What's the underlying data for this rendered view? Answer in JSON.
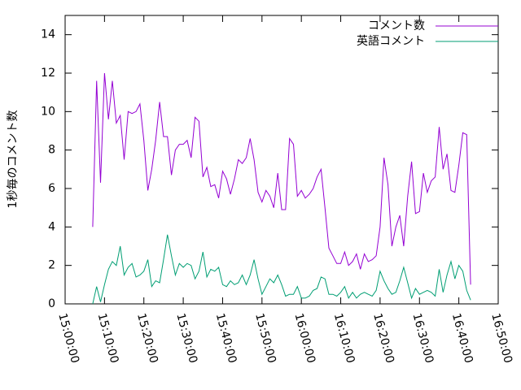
{
  "chart_data": {
    "type": "line",
    "ylabel": "1秒毎のコメント数",
    "x": [
      "15:07:00",
      "15:08:00",
      "15:09:00",
      "15:10:00",
      "15:11:00",
      "15:12:00",
      "15:13:00",
      "15:14:00",
      "15:15:00",
      "15:16:00",
      "15:17:00",
      "15:18:00",
      "15:19:00",
      "15:20:00",
      "15:21:00",
      "15:22:00",
      "15:23:00",
      "15:24:00",
      "15:25:00",
      "15:26:00",
      "15:27:00",
      "15:28:00",
      "15:29:00",
      "15:30:00",
      "15:31:00",
      "15:32:00",
      "15:33:00",
      "15:34:00",
      "15:35:00",
      "15:36:00",
      "15:37:00",
      "15:38:00",
      "15:39:00",
      "15:40:00",
      "15:41:00",
      "15:42:00",
      "15:43:00",
      "15:44:00",
      "15:45:00",
      "15:46:00",
      "15:47:00",
      "15:48:00",
      "15:49:00",
      "15:50:00",
      "15:51:00",
      "15:52:00",
      "15:53:00",
      "15:54:00",
      "15:55:00",
      "15:56:00",
      "15:57:00",
      "15:58:00",
      "15:59:00",
      "16:00:00",
      "16:01:00",
      "16:02:00",
      "16:03:00",
      "16:04:00",
      "16:05:00",
      "16:06:00",
      "16:07:00",
      "16:08:00",
      "16:09:00",
      "16:10:00",
      "16:11:00",
      "16:12:00",
      "16:13:00",
      "16:14:00",
      "16:15:00",
      "16:16:00",
      "16:17:00",
      "16:18:00",
      "16:19:00",
      "16:20:00",
      "16:21:00",
      "16:22:00",
      "16:23:00",
      "16:24:00",
      "16:25:00",
      "16:26:00",
      "16:27:00",
      "16:28:00",
      "16:29:00",
      "16:30:00",
      "16:31:00",
      "16:32:00",
      "16:33:00",
      "16:34:00",
      "16:35:00",
      "16:36:00",
      "16:37:00",
      "16:38:00",
      "16:39:00",
      "16:40:00",
      "16:41:00",
      "16:42:00",
      "16:43:00"
    ],
    "series": [
      {
        "name": "コメント数",
        "color": "#9400d3",
        "values": [
          4.0,
          11.6,
          6.3,
          12.0,
          9.6,
          11.6,
          9.4,
          9.8,
          7.5,
          10.0,
          9.9,
          10.0,
          10.4,
          8.5,
          5.9,
          7.0,
          8.5,
          10.5,
          8.7,
          8.7,
          6.7,
          8.0,
          8.3,
          8.3,
          8.5,
          7.6,
          9.7,
          9.5,
          6.6,
          7.1,
          6.1,
          6.2,
          5.5,
          6.9,
          6.5,
          5.7,
          6.5,
          7.5,
          7.3,
          7.6,
          8.6,
          7.5,
          5.8,
          5.3,
          5.9,
          5.6,
          5.0,
          6.8,
          4.9,
          4.9,
          8.6,
          8.3,
          5.6,
          5.9,
          5.5,
          5.7,
          6.0,
          6.6,
          7.0,
          5.0,
          2.9,
          2.5,
          2.1,
          2.1,
          2.7,
          2.0,
          2.2,
          2.6,
          1.8,
          2.6,
          2.2,
          2.3,
          2.5,
          4.0,
          7.6,
          6.2,
          3.0,
          4.0,
          4.6,
          3.0,
          5.6,
          7.4,
          4.7,
          4.8,
          6.8,
          5.8,
          6.4,
          6.6,
          9.2,
          7.0,
          7.8,
          5.9,
          5.8,
          7.2,
          8.9,
          8.8,
          1.0
        ]
      },
      {
        "name": "英語コメント",
        "color": "#009e73",
        "values": [
          0,
          0.9,
          0.1,
          1.0,
          1.8,
          2.2,
          2.0,
          3.0,
          1.5,
          1.9,
          2.1,
          1.4,
          1.5,
          1.7,
          2.3,
          0.9,
          1.2,
          1.1,
          2.3,
          3.6,
          2.5,
          1.5,
          2.1,
          1.9,
          2.1,
          2.0,
          1.3,
          1.7,
          2.7,
          1.4,
          1.8,
          1.7,
          1.9,
          1.0,
          0.9,
          1.2,
          1.0,
          1.1,
          1.5,
          1.0,
          1.5,
          2.3,
          1.3,
          0.5,
          0.9,
          1.3,
          1.1,
          1.5,
          1.0,
          0.4,
          0.5,
          0.5,
          0.9,
          0.3,
          0.3,
          0.4,
          0.7,
          0.8,
          1.4,
          1.3,
          0.5,
          0.5,
          0.4,
          0.6,
          0.9,
          0.3,
          0.6,
          0.3,
          0.5,
          0.6,
          0.5,
          0.4,
          0.7,
          1.7,
          1.2,
          0.8,
          0.5,
          0.6,
          1.2,
          1.9,
          1.1,
          0.3,
          0.8,
          0.5,
          0.6,
          0.7,
          0.6,
          0.4,
          1.8,
          0.6,
          1.5,
          2.2,
          1.3,
          2.0,
          1.7,
          0.7,
          0.2
        ]
      }
    ],
    "xlim": [
      "15:00:00",
      "16:50:00"
    ],
    "xticks": [
      "15:00:00",
      "15:10:00",
      "15:20:00",
      "15:30:00",
      "15:40:00",
      "15:50:00",
      "16:00:00",
      "16:10:00",
      "16:20:00",
      "16:30:00",
      "16:40:00",
      "16:50:00"
    ],
    "ylim": [
      0,
      15
    ],
    "yticks": [
      0,
      2,
      4,
      6,
      8,
      10,
      12,
      14
    ],
    "legend": "top right"
  }
}
